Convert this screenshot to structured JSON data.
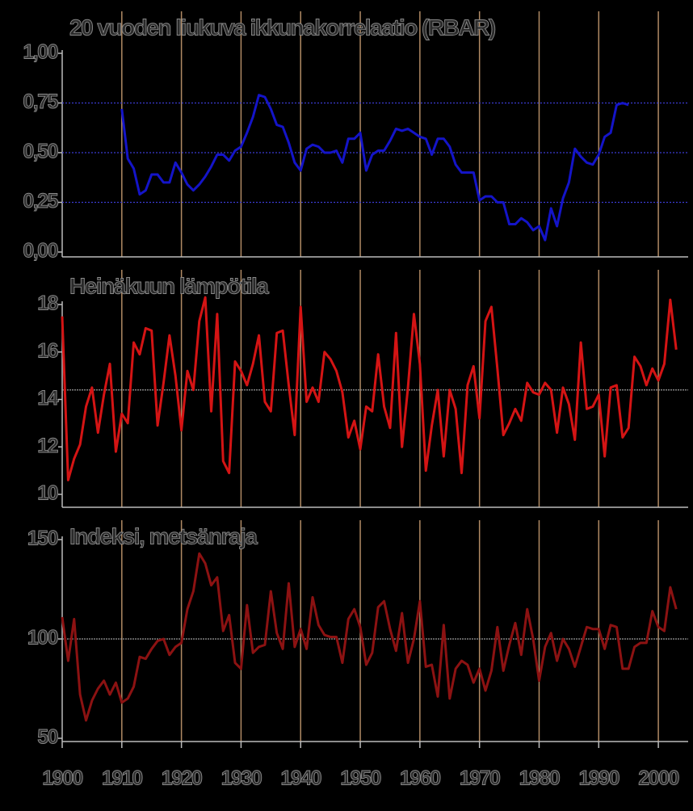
{
  "chart_data": [
    {
      "type": "line",
      "title": "20 vuoden liukuva ikkunakorrelaatio (RBAR)",
      "xlim": [
        1900,
        2005
      ],
      "ylim": [
        0,
        1
      ],
      "yticks": [
        {
          "value": 0,
          "label": "0,00"
        },
        {
          "value": 0.25,
          "label": "0,25"
        },
        {
          "value": 0.5,
          "label": "0,50"
        },
        {
          "value": 0.75,
          "label": "0,75"
        },
        {
          "value": 1,
          "label": "1,00"
        }
      ],
      "grid": true,
      "grid_color": "#3a3ad0",
      "vgrid": true,
      "x": [
        1910,
        1911,
        1912,
        1913,
        1914,
        1915,
        1916,
        1917,
        1918,
        1919,
        1920,
        1921,
        1922,
        1923,
        1924,
        1925,
        1926,
        1927,
        1928,
        1929,
        1930,
        1931,
        1932,
        1933,
        1934,
        1935,
        1936,
        1937,
        1938,
        1939,
        1940,
        1941,
        1942,
        1943,
        1944,
        1945,
        1946,
        1947,
        1948,
        1949,
        1950,
        1951,
        1952,
        1953,
        1954,
        1955,
        1956,
        1957,
        1958,
        1959,
        1960,
        1961,
        1962,
        1963,
        1964,
        1965,
        1966,
        1967,
        1968,
        1969,
        1970,
        1971,
        1972,
        1973,
        1974,
        1975,
        1976,
        1977,
        1978,
        1979,
        1980,
        1981,
        1982,
        1983,
        1984,
        1985,
        1986,
        1987,
        1988,
        1989,
        1990,
        1991,
        1992,
        1993,
        1994,
        1995
      ],
      "series": [
        {
          "color": "#1414c8",
          "values": [
            0.72,
            0.47,
            0.42,
            0.29,
            0.31,
            0.39,
            0.39,
            0.35,
            0.35,
            0.45,
            0.4,
            0.34,
            0.31,
            0.34,
            0.38,
            0.43,
            0.49,
            0.49,
            0.46,
            0.51,
            0.53,
            0.6,
            0.68,
            0.79,
            0.78,
            0.72,
            0.64,
            0.63,
            0.55,
            0.45,
            0.41,
            0.52,
            0.54,
            0.53,
            0.5,
            0.5,
            0.51,
            0.45,
            0.57,
            0.57,
            0.6,
            0.41,
            0.49,
            0.51,
            0.51,
            0.56,
            0.62,
            0.61,
            0.62,
            0.6,
            0.58,
            0.57,
            0.49,
            0.57,
            0.57,
            0.53,
            0.44,
            0.4,
            0.4,
            0.4,
            0.26,
            0.28,
            0.28,
            0.25,
            0.25,
            0.14,
            0.14,
            0.17,
            0.15,
            0.11,
            0.13,
            0.06,
            0.22,
            0.13,
            0.27,
            0.35,
            0.52,
            0.48,
            0.45,
            0.44,
            0.49,
            0.58,
            0.6,
            0.74,
            0.75,
            0.74
          ]
        }
      ]
    },
    {
      "type": "line",
      "title": "Heinäkuun lämpötila",
      "xlim": [
        1900,
        2005
      ],
      "ylim": [
        10,
        18
      ],
      "yticks": [
        10,
        12,
        14,
        16,
        18
      ],
      "ref_line": 14.4,
      "vgrid": true,
      "x": [
        1900,
        1901,
        1902,
        1903,
        1904,
        1905,
        1906,
        1907,
        1908,
        1909,
        1910,
        1911,
        1912,
        1913,
        1914,
        1915,
        1916,
        1917,
        1918,
        1919,
        1920,
        1921,
        1922,
        1923,
        1924,
        1925,
        1926,
        1927,
        1928,
        1929,
        1930,
        1931,
        1932,
        1933,
        1934,
        1935,
        1936,
        1937,
        1938,
        1939,
        1940,
        1941,
        1942,
        1943,
        1944,
        1945,
        1946,
        1947,
        1948,
        1949,
        1950,
        1951,
        1952,
        1953,
        1954,
        1955,
        1956,
        1957,
        1958,
        1959,
        1960,
        1961,
        1962,
        1963,
        1964,
        1965,
        1966,
        1967,
        1968,
        1969,
        1970,
        1971,
        1972,
        1973,
        1974,
        1975,
        1976,
        1977,
        1978,
        1979,
        1980,
        1981,
        1982,
        1983,
        1984,
        1985,
        1986,
        1987,
        1988,
        1989,
        1990,
        1991,
        1992,
        1993,
        1994,
        1995,
        1996,
        1997,
        1998,
        1999,
        2000,
        2001,
        2002,
        2003
      ],
      "series": [
        {
          "color": "#d41414",
          "values": [
            17.5,
            10.6,
            11.5,
            12.1,
            13.7,
            14.5,
            12.6,
            14.2,
            15.5,
            11.8,
            13.4,
            13.0,
            16.4,
            15.9,
            17.0,
            16.9,
            12.9,
            14.7,
            16.7,
            15.0,
            12.7,
            15.2,
            14.4,
            17.3,
            18.3,
            13.5,
            17.6,
            11.4,
            10.9,
            15.6,
            15.2,
            14.6,
            15.5,
            16.7,
            13.9,
            13.5,
            16.8,
            16.9,
            14.6,
            12.5,
            17.9,
            13.9,
            14.5,
            13.9,
            16.0,
            15.7,
            15.2,
            14.3,
            12.4,
            13.1,
            11.9,
            13.7,
            13.5,
            15.9,
            13.7,
            12.8,
            16.8,
            12.0,
            14.5,
            17.6,
            15.5,
            11.0,
            12.9,
            14.4,
            11.6,
            14.4,
            13.6,
            10.9,
            14.6,
            15.4,
            13.2,
            17.3,
            17.9,
            15.3,
            12.5,
            13.0,
            13.6,
            13.1,
            14.7,
            14.3,
            14.2,
            14.7,
            14.4,
            12.6,
            14.5,
            13.8,
            12.3,
            16.4,
            13.6,
            13.7,
            14.2,
            11.6,
            14.5,
            14.6,
            12.4,
            12.8,
            15.8,
            15.4,
            14.6,
            15.3,
            14.8,
            15.5,
            18.2,
            16.1
          ]
        }
      ]
    },
    {
      "type": "line",
      "title": "Indeksi, metsänraja",
      "xlim": [
        1900,
        2005
      ],
      "ylim": [
        50,
        150
      ],
      "yticks": [
        50,
        100,
        150
      ],
      "xticks": [
        1900,
        1910,
        1920,
        1930,
        1940,
        1950,
        1960,
        1970,
        1980,
        1990,
        2000
      ],
      "ref_line": 100,
      "vgrid": true,
      "x": [
        1900,
        1901,
        1902,
        1903,
        1904,
        1905,
        1906,
        1907,
        1908,
        1909,
        1910,
        1911,
        1912,
        1913,
        1914,
        1915,
        1916,
        1917,
        1918,
        1919,
        1920,
        1921,
        1922,
        1923,
        1924,
        1925,
        1926,
        1927,
        1928,
        1929,
        1930,
        1931,
        1932,
        1933,
        1934,
        1935,
        1936,
        1937,
        1938,
        1939,
        1940,
        1941,
        1942,
        1943,
        1944,
        1945,
        1946,
        1947,
        1948,
        1949,
        1950,
        1951,
        1952,
        1953,
        1954,
        1955,
        1956,
        1957,
        1958,
        1959,
        1960,
        1961,
        1962,
        1963,
        1964,
        1965,
        1966,
        1967,
        1968,
        1969,
        1970,
        1971,
        1972,
        1973,
        1974,
        1975,
        1976,
        1977,
        1978,
        1979,
        1980,
        1981,
        1982,
        1983,
        1984,
        1985,
        1986,
        1987,
        1988,
        1989,
        1990,
        1991,
        1992,
        1993,
        1994,
        1995,
        1996,
        1997,
        1998,
        1999,
        2000,
        2001,
        2002,
        2003
      ],
      "series": [
        {
          "color": "#8c1212",
          "values": [
            111,
            89,
            110,
            72,
            59,
            69,
            75,
            79,
            72,
            78,
            68,
            70,
            76,
            91,
            90,
            95,
            99,
            100,
            92,
            96,
            98,
            115,
            124,
            143,
            138,
            127,
            131,
            104,
            112,
            88,
            85,
            117,
            93,
            96,
            97,
            124,
            103,
            95,
            128,
            96,
            105,
            95,
            121,
            107,
            102,
            101,
            101,
            88,
            110,
            115,
            106,
            87,
            93,
            116,
            119,
            105,
            94,
            113,
            88,
            100,
            119,
            86,
            87,
            71,
            107,
            70,
            85,
            89,
            87,
            78,
            85,
            74,
            84,
            106,
            84,
            97,
            108,
            92,
            115,
            100,
            79,
            96,
            103,
            89,
            100,
            95,
            86,
            96,
            106,
            105,
            105,
            95,
            107,
            106,
            85,
            85,
            96,
            98,
            98,
            114,
            106,
            104,
            126,
            115
          ]
        }
      ]
    }
  ]
}
